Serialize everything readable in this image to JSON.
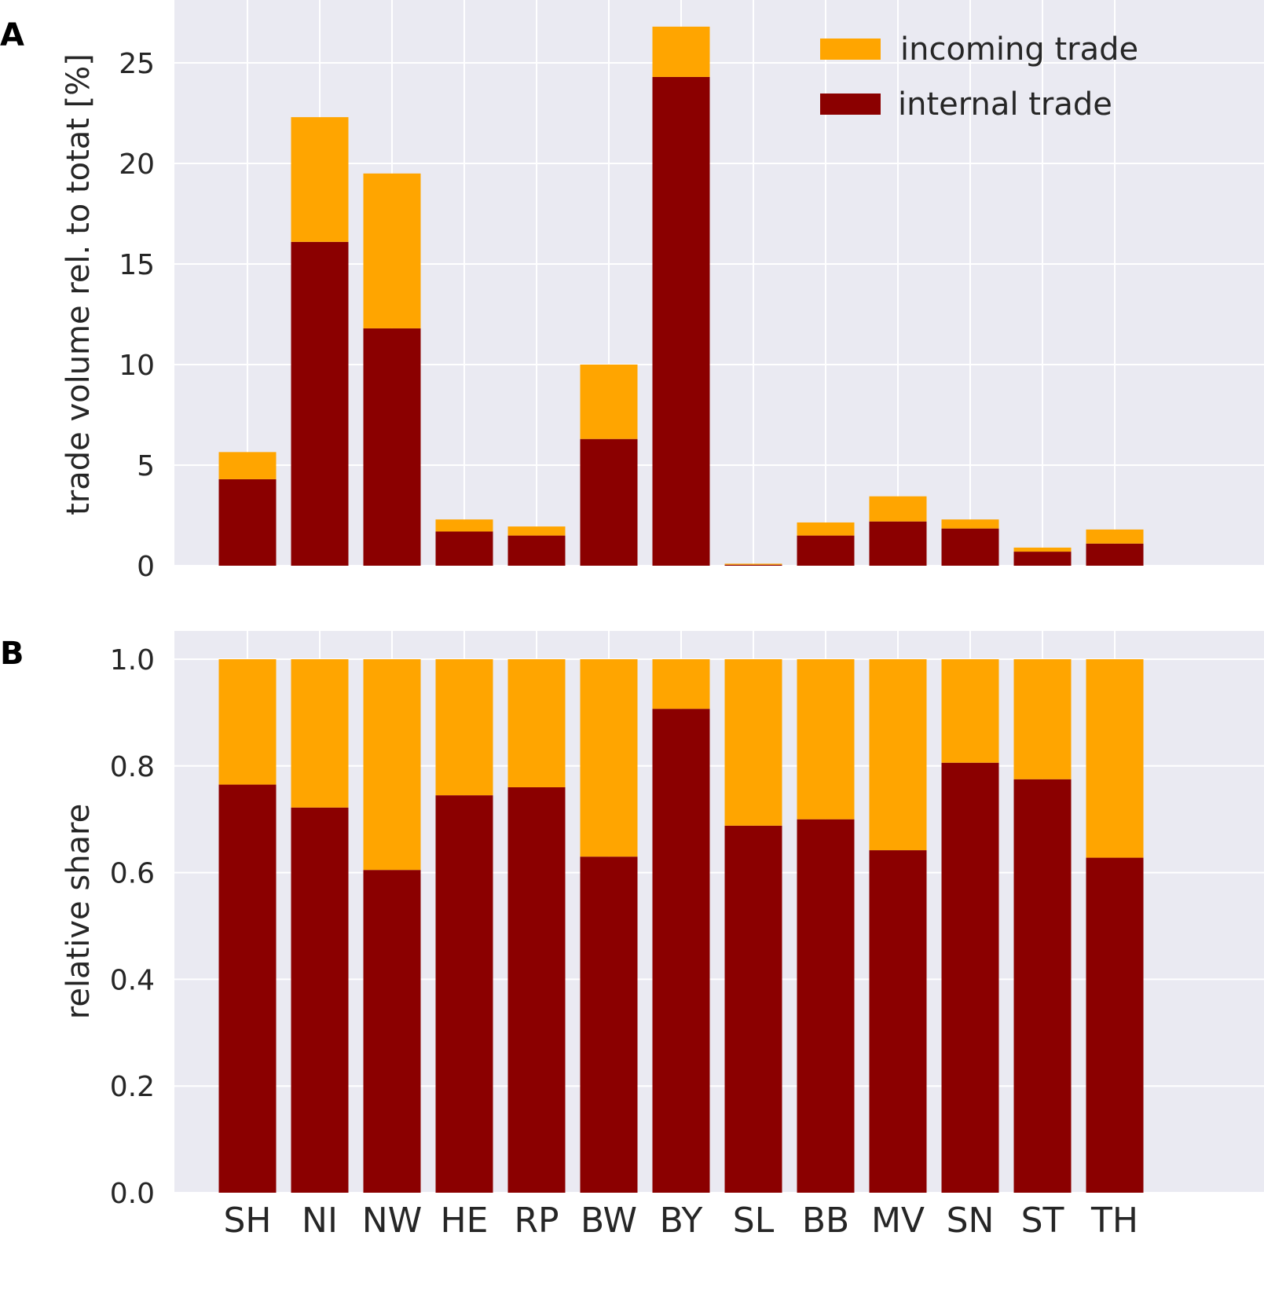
{
  "chart_data": [
    {
      "panel": "A",
      "type": "bar",
      "stacked": true,
      "categories": [
        "SH",
        "NI",
        "NW",
        "HE",
        "RP",
        "BW",
        "BY",
        "SL",
        "BB",
        "MV",
        "SN",
        "ST",
        "TH"
      ],
      "series": [
        {
          "name": "internal trade",
          "color": "#8b0000",
          "values": [
            4.3,
            16.1,
            11.8,
            1.7,
            1.5,
            6.3,
            24.3,
            0.05,
            1.5,
            2.2,
            1.85,
            0.7,
            1.1
          ]
        },
        {
          "name": "incoming trade",
          "color": "#ffa500",
          "values": [
            1.35,
            6.2,
            7.7,
            0.6,
            0.45,
            3.7,
            2.5,
            0.05,
            0.65,
            1.25,
            0.45,
            0.2,
            0.7
          ]
        }
      ],
      "ylabel": "trade volume rel. to totat [%]",
      "ylim": [
        0,
        28
      ],
      "yticks": [
        "0",
        "5",
        "10",
        "15",
        "20",
        "25"
      ],
      "legend": {
        "location": "top-right",
        "entries": [
          "incoming trade",
          "internal trade"
        ]
      }
    },
    {
      "panel": "B",
      "type": "bar",
      "stacked": true,
      "categories": [
        "SH",
        "NI",
        "NW",
        "HE",
        "RP",
        "BW",
        "BY",
        "SL",
        "BB",
        "MV",
        "SN",
        "ST",
        "TH"
      ],
      "series": [
        {
          "name": "internal trade",
          "color": "#8b0000",
          "values": [
            0.765,
            0.722,
            0.605,
            0.745,
            0.76,
            0.63,
            0.907,
            0.688,
            0.7,
            0.642,
            0.806,
            0.775,
            0.628
          ]
        },
        {
          "name": "incoming trade",
          "color": "#ffa500",
          "values": [
            0.235,
            0.278,
            0.395,
            0.255,
            0.24,
            0.37,
            0.093,
            0.312,
            0.3,
            0.358,
            0.194,
            0.225,
            0.372
          ]
        }
      ],
      "ylabel": "relative share",
      "ylim": [
        0,
        1.05
      ],
      "yticks": [
        "0.0",
        "0.2",
        "0.4",
        "0.6",
        "0.8",
        "1.0"
      ]
    }
  ],
  "panel_labels": [
    "A",
    "B"
  ],
  "colors": {
    "background": "#eaeaf2",
    "grid": "#ffffff",
    "internal": "#8b0000",
    "incoming": "#ffa500"
  }
}
